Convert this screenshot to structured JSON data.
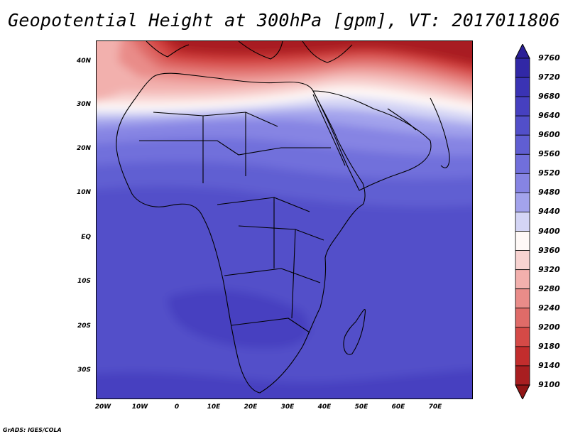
{
  "title": "Geopotential Height at 300hPa [gpm], VT: 2017011806",
  "credit": "GrADS: IGES/COLA",
  "map": {
    "lat_labels": [
      "40N",
      "30N",
      "20N",
      "10N",
      "EQ",
      "10S",
      "20S",
      "30S"
    ],
    "lat_values": [
      40,
      30,
      20,
      10,
      0,
      -10,
      -20,
      -30
    ],
    "lon_labels": [
      "20W",
      "10W",
      "0",
      "10E",
      "20E",
      "30E",
      "40E",
      "50E",
      "60E",
      "70E"
    ],
    "lon_values": [
      -20,
      -10,
      0,
      10,
      20,
      30,
      40,
      50,
      60,
      70
    ],
    "lat_range": [
      -36,
      45
    ],
    "lon_range": [
      -22,
      80
    ],
    "field": "geopotential height",
    "level": "300hPa",
    "units": "gpm"
  },
  "colorbar": {
    "levels": [
      "9760",
      "9720",
      "9680",
      "9640",
      "9600",
      "9560",
      "9520",
      "9480",
      "9440",
      "9400",
      "9360",
      "9320",
      "9280",
      "9240",
      "9200",
      "9180",
      "9140",
      "9100"
    ],
    "colors": [
      "#2a1f97",
      "#3128a6",
      "#3a33b4",
      "#4640c0",
      "#524fc9",
      "#605ed2",
      "#716fdb",
      "#8684e3",
      "#a3a3ec",
      "#d4d5f5",
      "#fff9f7",
      "#f8d3d1",
      "#f2b0ad",
      "#e98c89",
      "#df6b68",
      "#d54a47",
      "#c22d2d",
      "#a81e20",
      "#911515"
    ]
  }
}
